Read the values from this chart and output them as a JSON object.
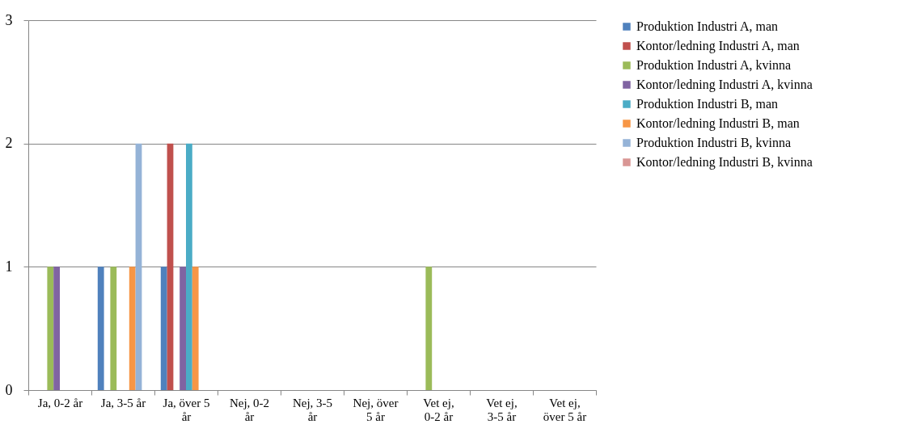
{
  "chart_data": {
    "type": "bar",
    "categories": [
      "Ja, 0-2 år",
      "Ja, 3-5 år",
      "Ja, över 5 år",
      "Nej, 0-2 år",
      "Nej, 3-5 år",
      "Nej, över 5 år",
      "Vet ej, 0-2 år",
      "Vet ej, 3-5 år",
      "Vet ej, över 5 år"
    ],
    "series": [
      {
        "name": "Produktion Industri A, man",
        "color": "#4f81bd",
        "values": [
          0,
          1,
          1,
          0,
          0,
          0,
          0,
          0,
          0
        ]
      },
      {
        "name": "Kontor/ledning Industri A, man",
        "color": "#c0504d",
        "values": [
          0,
          0,
          2,
          0,
          0,
          0,
          0,
          0,
          0
        ]
      },
      {
        "name": "Produktion Industri A, kvinna",
        "color": "#9bbb59",
        "values": [
          1,
          1,
          0,
          0,
          0,
          0,
          1,
          0,
          0
        ]
      },
      {
        "name": "Kontor/ledning Industri A, kvinna",
        "color": "#8064a2",
        "values": [
          1,
          0,
          1,
          0,
          0,
          0,
          0,
          0,
          0
        ]
      },
      {
        "name": "Produktion Industri B, man",
        "color": "#4bacc6",
        "values": [
          0,
          0,
          2,
          0,
          0,
          0,
          0,
          0,
          0
        ]
      },
      {
        "name": "Kontor/ledning Industri B, man",
        "color": "#f79646",
        "values": [
          0,
          1,
          1,
          0,
          0,
          0,
          0,
          0,
          0
        ]
      },
      {
        "name": "Produktion Industri B, kvinna",
        "color": "#95b3d7",
        "values": [
          0,
          2,
          0,
          0,
          0,
          0,
          0,
          0,
          0
        ]
      },
      {
        "name": "Kontor/ledning Industri B, kvinna",
        "color": "#d99694",
        "values": [
          0,
          0,
          0,
          0,
          0,
          0,
          0,
          0,
          0
        ]
      }
    ],
    "ylim": [
      0,
      3
    ],
    "yticks": [
      0,
      1,
      2,
      3
    ],
    "grid": "y",
    "legend": "right"
  }
}
